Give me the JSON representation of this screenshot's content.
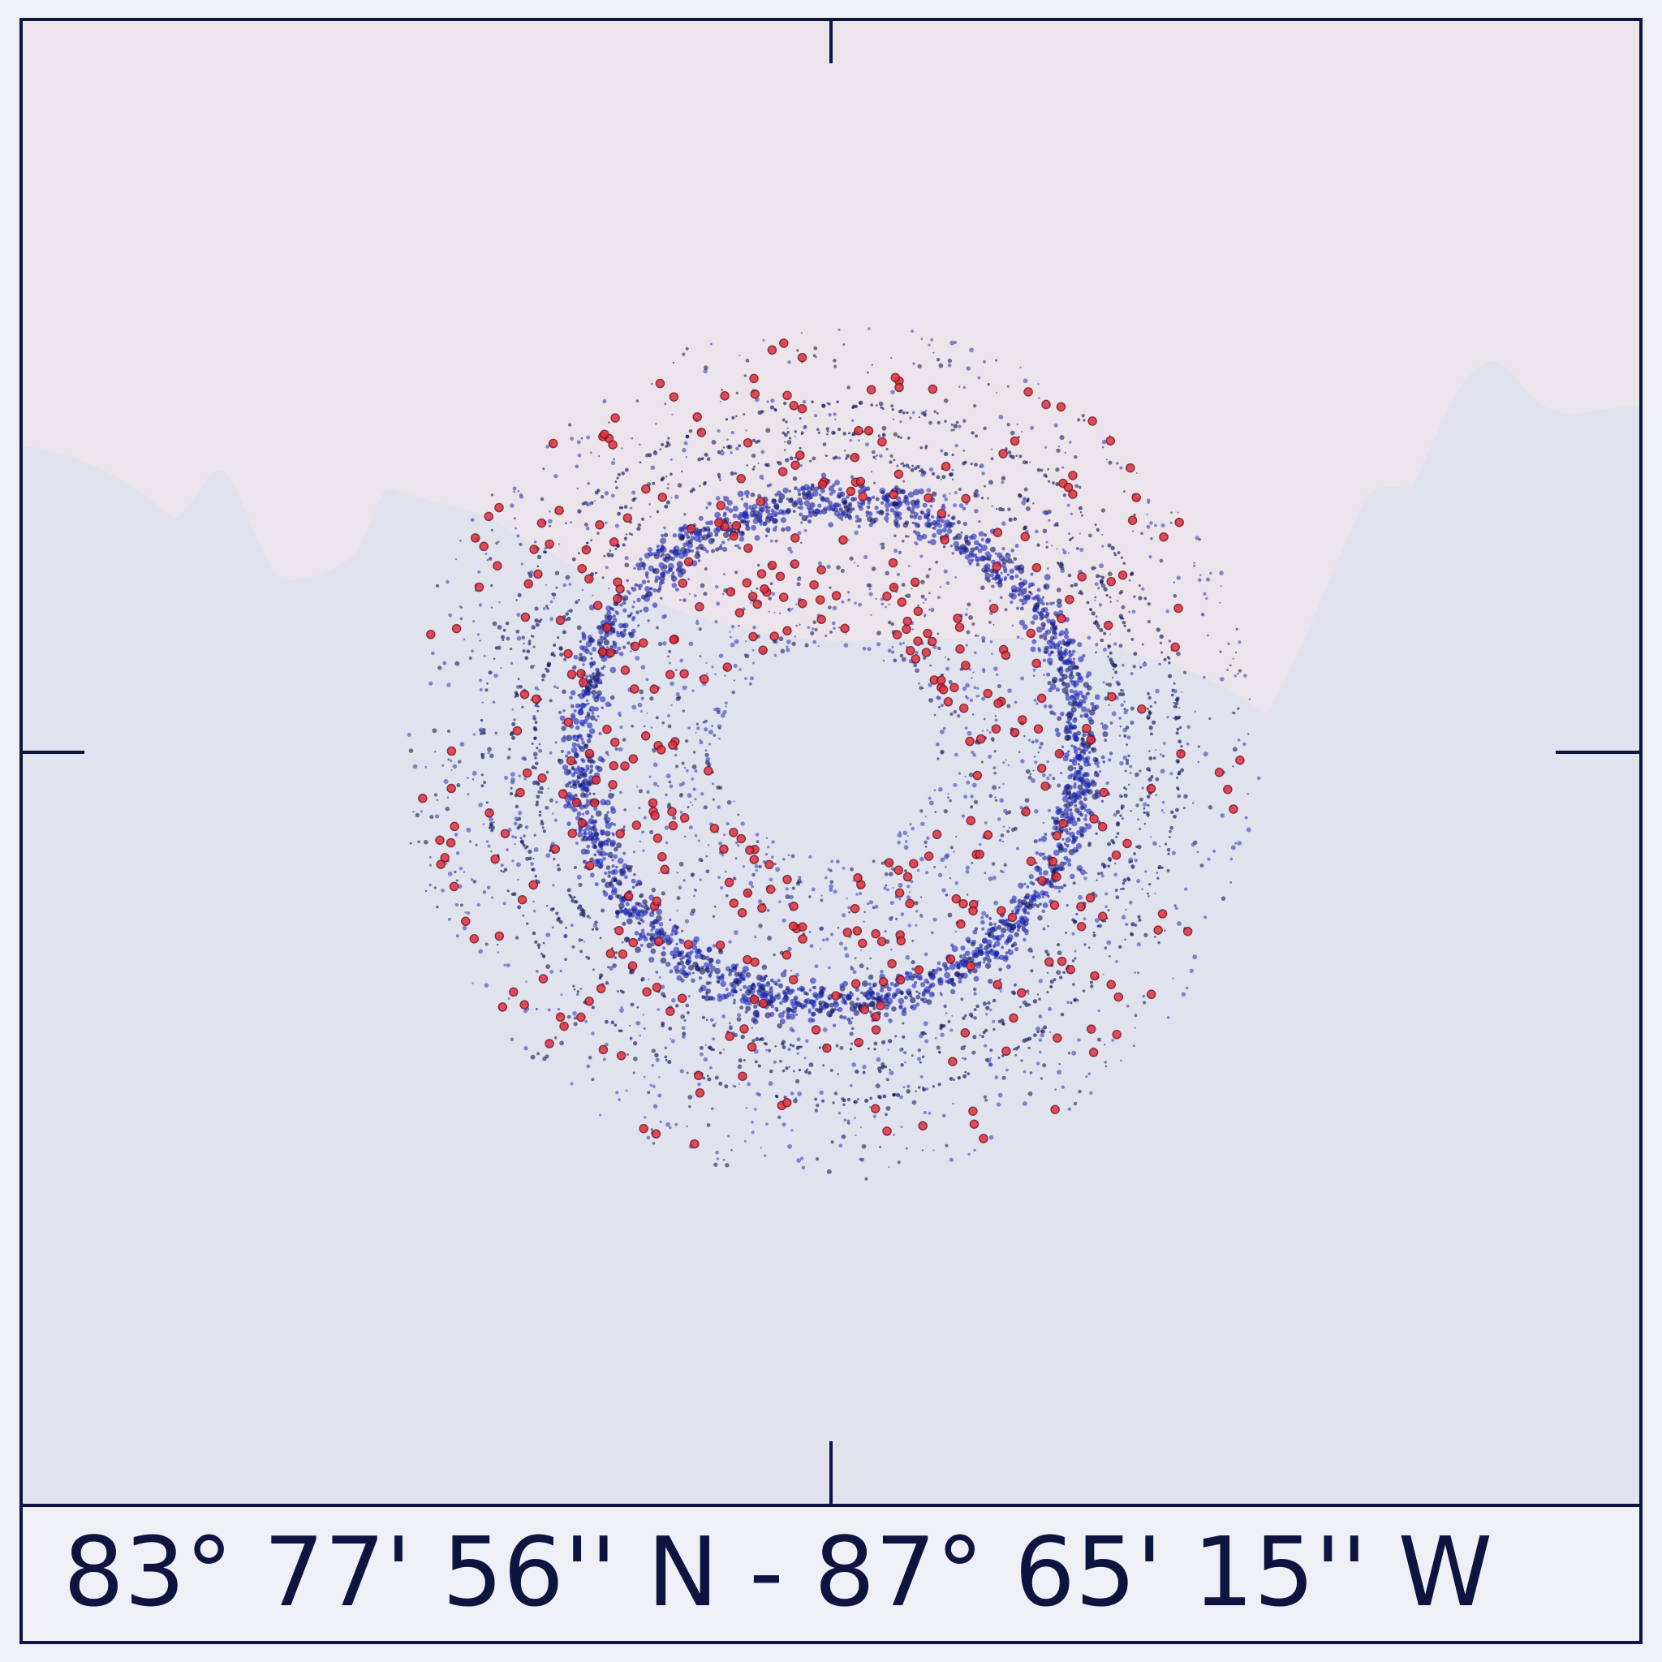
{
  "caption": "83° 77' 56'' N - 87° 65' 15'' W"
}
